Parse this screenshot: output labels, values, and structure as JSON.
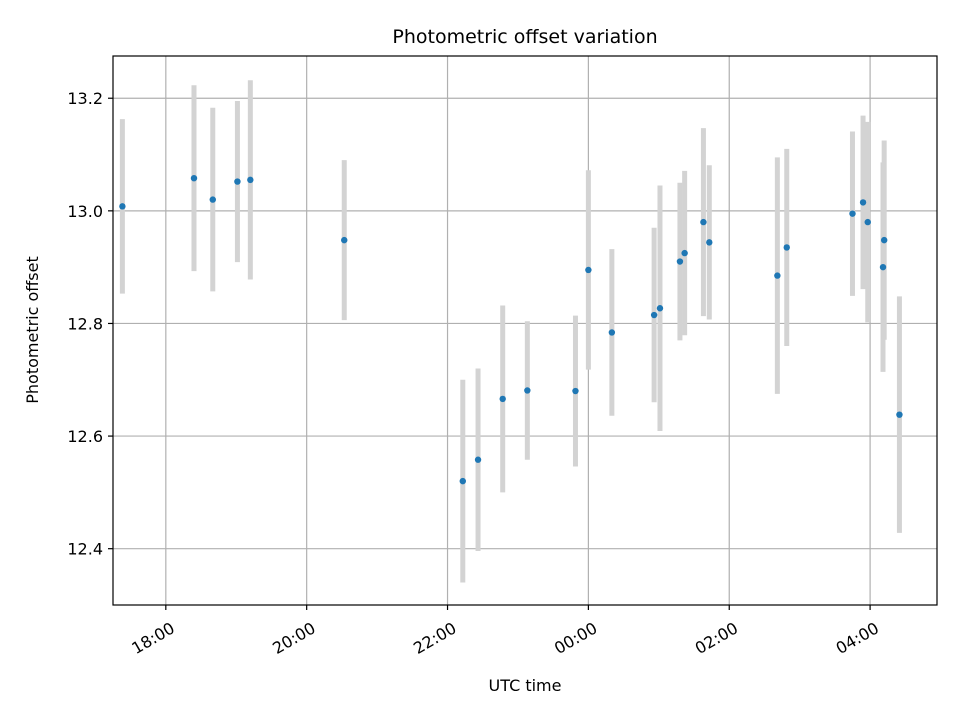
{
  "chart_data": {
    "type": "scatter",
    "title": "Photometric offset variation",
    "xlabel": "UTC time",
    "ylabel": "Photometric offset",
    "xlim": [
      "17:15",
      "04:57"
    ],
    "ylim": [
      12.3,
      13.275
    ],
    "x_ticks": [
      {
        "time": "18:00",
        "label": "18:00"
      },
      {
        "time": "20:00",
        "label": "20:00"
      },
      {
        "time": "22:00",
        "label": "22:00"
      },
      {
        "time": "00:00",
        "label": "00:00"
      },
      {
        "time": "02:00",
        "label": "02:00"
      },
      {
        "time": "04:00",
        "label": "04:00"
      }
    ],
    "y_ticks": [
      12.4,
      12.6,
      12.8,
      13.0,
      13.2
    ],
    "grid": true,
    "colors": {
      "point": "#1f77b4",
      "error_bar": "#d3d3d3",
      "grid": "#b0b0b0",
      "axes": "#000000"
    },
    "series": [
      {
        "points": [
          {
            "x": "17:23",
            "y": 13.008,
            "err": 0.155
          },
          {
            "x": "18:24",
            "y": 13.058,
            "err": 0.165
          },
          {
            "x": "18:40",
            "y": 13.02,
            "err": 0.163
          },
          {
            "x": "19:01",
            "y": 13.052,
            "err": 0.143
          },
          {
            "x": "19:12",
            "y": 13.055,
            "err": 0.177
          },
          {
            "x": "20:32",
            "y": 12.948,
            "err": 0.142
          },
          {
            "x": "22:13",
            "y": 12.52,
            "err": 0.18
          },
          {
            "x": "22:26",
            "y": 12.558,
            "err": 0.162
          },
          {
            "x": "22:47",
            "y": 12.666,
            "err": 0.166
          },
          {
            "x": "23:08",
            "y": 12.681,
            "err": 0.123
          },
          {
            "x": "23:49",
            "y": 12.68,
            "err": 0.134
          },
          {
            "x": "00:00",
            "y": 12.895,
            "err": 0.177
          },
          {
            "x": "00:20",
            "y": 12.784,
            "err": 0.148
          },
          {
            "x": "00:56",
            "y": 12.815,
            "err": 0.155
          },
          {
            "x": "01:01",
            "y": 12.827,
            "err": 0.218
          },
          {
            "x": "01:18",
            "y": 12.91,
            "err": 0.14
          },
          {
            "x": "01:22",
            "y": 12.925,
            "err": 0.146
          },
          {
            "x": "01:38",
            "y": 12.98,
            "err": 0.167
          },
          {
            "x": "01:43",
            "y": 12.944,
            "err": 0.137
          },
          {
            "x": "02:41",
            "y": 12.885,
            "err": 0.21
          },
          {
            "x": "02:49",
            "y": 12.935,
            "err": 0.175
          },
          {
            "x": "03:45",
            "y": 12.995,
            "err": 0.146
          },
          {
            "x": "03:54",
            "y": 13.015,
            "err": 0.154
          },
          {
            "x": "03:58",
            "y": 12.98,
            "err": 0.178
          },
          {
            "x": "04:11",
            "y": 12.9,
            "err": 0.186
          },
          {
            "x": "04:12",
            "y": 12.948,
            "err": 0.177
          },
          {
            "x": "04:25",
            "y": 12.638,
            "err": 0.21
          }
        ]
      }
    ]
  }
}
